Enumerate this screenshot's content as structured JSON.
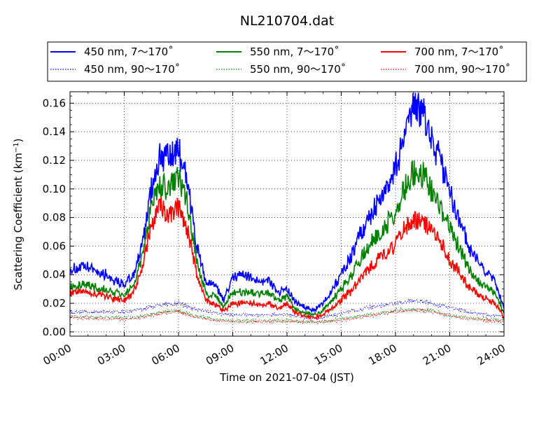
{
  "chart_data": {
    "type": "line",
    "title": "NL210704.dat",
    "xlabel": "Time on 2021-07-04 (JST)",
    "ylabel": "Scattering Coefficient (km",
    "ylabel_sup": "−1",
    "ylabel_close": ")",
    "xlim": [
      0,
      24
    ],
    "ylim": [
      -0.003,
      0.168
    ],
    "x_ticks": [
      0,
      3,
      6,
      9,
      12,
      15,
      18,
      21,
      24
    ],
    "x_tick_labels": [
      "00:00",
      "03:00",
      "06:00",
      "09:00",
      "12:00",
      "15:00",
      "18:00",
      "21:00",
      "24:00"
    ],
    "y_ticks": [
      0.0,
      0.02,
      0.04,
      0.06,
      0.08,
      0.1,
      0.12,
      0.14,
      0.16
    ],
    "y_tick_labels": [
      "0.00",
      "0.02",
      "0.04",
      "0.06",
      "0.08",
      "0.10",
      "0.12",
      "0.14",
      "0.16"
    ],
    "grid": true,
    "legend_position": "top, above plot",
    "colors": {
      "blue": "#0000ff",
      "green": "#008000",
      "red": "#ff0000"
    },
    "series": [
      {
        "name": "450 nm, 7～170˚",
        "color": "#0000ff",
        "style": "solid",
        "x": [
          0,
          1,
          2,
          2.5,
          3,
          3.5,
          4,
          4.5,
          5,
          5.5,
          6,
          6.5,
          7,
          7.5,
          8,
          8.5,
          9,
          9.5,
          10,
          10.5,
          11,
          11.5,
          12,
          12.5,
          13,
          13.5,
          14,
          14.5,
          15,
          15.5,
          16,
          16.5,
          17,
          17.5,
          18,
          18.5,
          19,
          19.5,
          20,
          20.5,
          21,
          21.5,
          22,
          22.5,
          23,
          23.5,
          24
        ],
        "y": [
          0.044,
          0.045,
          0.04,
          0.036,
          0.033,
          0.04,
          0.06,
          0.1,
          0.125,
          0.12,
          0.128,
          0.105,
          0.06,
          0.035,
          0.033,
          0.022,
          0.038,
          0.04,
          0.038,
          0.036,
          0.036,
          0.028,
          0.03,
          0.02,
          0.017,
          0.015,
          0.02,
          0.03,
          0.04,
          0.052,
          0.067,
          0.08,
          0.09,
          0.1,
          0.115,
          0.135,
          0.155,
          0.155,
          0.135,
          0.12,
          0.098,
          0.08,
          0.06,
          0.05,
          0.042,
          0.035,
          0.017
        ]
      },
      {
        "name": "450 nm, 90～170˚",
        "color": "#0000ff",
        "style": "dotted",
        "x": [
          0,
          2,
          3,
          4,
          5,
          6,
          7,
          8,
          9,
          10,
          11,
          12,
          13,
          14,
          15,
          16,
          17,
          18,
          19,
          20,
          21,
          22,
          23,
          24
        ],
        "y": [
          0.014,
          0.014,
          0.014,
          0.016,
          0.019,
          0.02,
          0.016,
          0.013,
          0.012,
          0.012,
          0.012,
          0.012,
          0.01,
          0.01,
          0.013,
          0.016,
          0.018,
          0.02,
          0.022,
          0.02,
          0.017,
          0.014,
          0.012,
          0.011
        ]
      },
      {
        "name": "550 nm, 7～170˚",
        "color": "#008000",
        "style": "solid",
        "x": [
          0,
          1,
          2,
          2.5,
          3,
          3.5,
          4,
          4.5,
          5,
          5.5,
          6,
          6.5,
          7,
          7.5,
          8,
          8.5,
          9,
          9.5,
          10,
          10.5,
          11,
          11.5,
          12,
          12.5,
          13,
          13.5,
          14,
          14.5,
          15,
          15.5,
          16,
          16.5,
          17,
          17.5,
          18,
          18.5,
          19,
          19.5,
          20,
          20.5,
          21,
          21.5,
          22,
          22.5,
          23,
          23.5,
          24
        ],
        "y": [
          0.032,
          0.033,
          0.029,
          0.027,
          0.026,
          0.032,
          0.052,
          0.088,
          0.102,
          0.1,
          0.108,
          0.09,
          0.05,
          0.027,
          0.025,
          0.018,
          0.027,
          0.028,
          0.028,
          0.026,
          0.027,
          0.022,
          0.025,
          0.016,
          0.013,
          0.012,
          0.015,
          0.022,
          0.03,
          0.038,
          0.05,
          0.06,
          0.068,
          0.075,
          0.085,
          0.1,
          0.112,
          0.11,
          0.1,
          0.088,
          0.072,
          0.06,
          0.045,
          0.037,
          0.031,
          0.027,
          0.013
        ]
      },
      {
        "name": "550 nm, 90～170˚",
        "color": "#008000",
        "style": "dotted",
        "x": [
          0,
          2,
          3,
          4,
          5,
          6,
          7,
          8,
          9,
          10,
          11,
          12,
          13,
          14,
          15,
          16,
          17,
          18,
          19,
          20,
          21,
          22,
          23,
          24
        ],
        "y": [
          0.011,
          0.01,
          0.01,
          0.011,
          0.014,
          0.015,
          0.011,
          0.009,
          0.008,
          0.008,
          0.008,
          0.008,
          0.007,
          0.007,
          0.009,
          0.011,
          0.013,
          0.015,
          0.016,
          0.015,
          0.012,
          0.01,
          0.009,
          0.008
        ]
      },
      {
        "name": "700 nm, 7～170˚",
        "color": "#ff0000",
        "style": "solid",
        "x": [
          0,
          1,
          2,
          2.5,
          3,
          3.5,
          4,
          4.5,
          5,
          5.5,
          6,
          6.5,
          7,
          7.5,
          8,
          8.5,
          9,
          9.5,
          10,
          10.5,
          11,
          11.5,
          12,
          12.5,
          13,
          13.5,
          14,
          14.5,
          15,
          15.5,
          16,
          16.5,
          17,
          17.5,
          18,
          18.5,
          19,
          19.5,
          20,
          20.5,
          21,
          21.5,
          22,
          22.5,
          23,
          23.5,
          24
        ],
        "y": [
          0.028,
          0.028,
          0.025,
          0.023,
          0.022,
          0.027,
          0.045,
          0.075,
          0.088,
          0.082,
          0.088,
          0.072,
          0.04,
          0.022,
          0.019,
          0.015,
          0.02,
          0.02,
          0.02,
          0.019,
          0.02,
          0.017,
          0.02,
          0.013,
          0.011,
          0.01,
          0.012,
          0.017,
          0.023,
          0.028,
          0.036,
          0.043,
          0.05,
          0.055,
          0.062,
          0.072,
          0.08,
          0.078,
          0.07,
          0.062,
          0.05,
          0.042,
          0.032,
          0.027,
          0.023,
          0.02,
          0.01
        ]
      },
      {
        "name": "700 nm, 90～170˚",
        "color": "#ff0000",
        "style": "dotted",
        "x": [
          0,
          2,
          3,
          4,
          5,
          6,
          7,
          8,
          9,
          10,
          11,
          12,
          13,
          14,
          15,
          16,
          17,
          18,
          19,
          20,
          21,
          22,
          23,
          24
        ],
        "y": [
          0.01,
          0.009,
          0.009,
          0.01,
          0.013,
          0.014,
          0.01,
          0.008,
          0.007,
          0.007,
          0.007,
          0.007,
          0.007,
          0.007,
          0.008,
          0.01,
          0.012,
          0.014,
          0.015,
          0.014,
          0.011,
          0.009,
          0.008,
          0.007
        ]
      }
    ]
  }
}
